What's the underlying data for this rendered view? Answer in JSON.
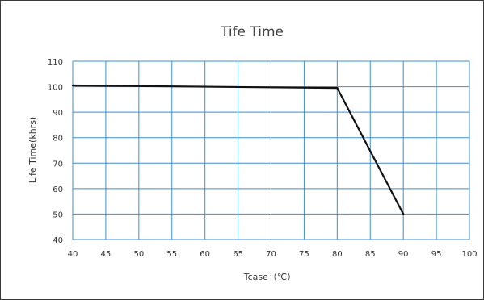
{
  "chart_data": {
    "type": "line",
    "title": "Tife Time",
    "xlabel": "Tcase（℃）",
    "ylabel": "Life Time(khrs)",
    "xlim": [
      40,
      100
    ],
    "ylim": [
      40,
      110
    ],
    "x_ticks": [
      40,
      45,
      50,
      55,
      60,
      65,
      70,
      75,
      80,
      85,
      90,
      95,
      100
    ],
    "y_ticks": [
      40,
      50,
      60,
      70,
      80,
      90,
      100,
      110
    ],
    "grid": true,
    "series": [
      {
        "x": [
          40,
          80,
          90
        ],
        "y": [
          100.5,
          99.5,
          50
        ]
      }
    ],
    "colors": {
      "grid": "#3b8fd0",
      "line": "#111111",
      "border": "#3a3a3a"
    }
  }
}
